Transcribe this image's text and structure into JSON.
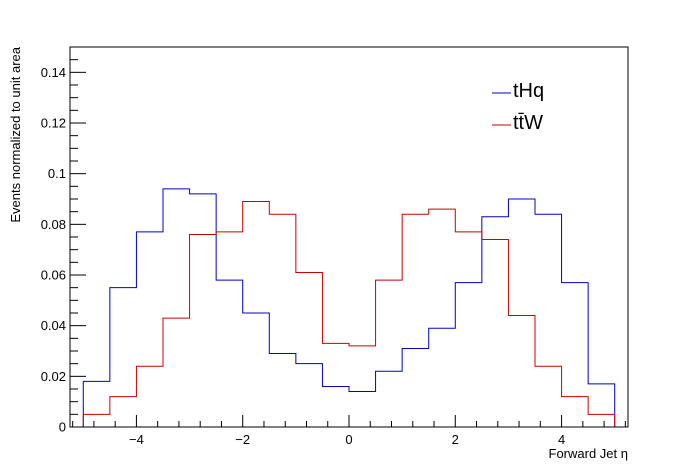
{
  "chart_data": {
    "type": "histogram",
    "xlabel": "Forward Jet η",
    "ylabel": "Events normalized to unit area",
    "xlim": [
      -5.25,
      5.25
    ],
    "ylim": [
      0,
      0.15
    ],
    "x_ticks": [
      -4,
      -2,
      0,
      2,
      4
    ],
    "y_ticks": [
      0,
      0.02,
      0.04,
      0.06,
      0.08,
      0.1,
      0.12,
      0.14
    ],
    "x_tick_labels": [
      "−4",
      "−2",
      "0",
      "2",
      "4"
    ],
    "y_tick_labels": [
      "0",
      "0.02",
      "0.04",
      "0.06",
      "0.08",
      "0.1",
      "0.12",
      "0.14"
    ],
    "bin_edges": [
      -5.0,
      -4.5,
      -4.0,
      -3.5,
      -3.0,
      -2.5,
      -2.0,
      -1.5,
      -1.0,
      -0.5,
      0.0,
      0.5,
      1.0,
      1.5,
      2.0,
      2.5,
      3.0,
      3.5,
      4.0,
      4.5,
      5.0
    ],
    "series": [
      {
        "name": "tHq",
        "color": "#0000cc",
        "values": [
          0.018,
          0.055,
          0.077,
          0.094,
          0.092,
          0.058,
          0.045,
          0.029,
          0.025,
          0.016,
          0.014,
          0.022,
          0.031,
          0.039,
          0.057,
          0.083,
          0.09,
          0.084,
          0.057,
          0.017
        ]
      },
      {
        "name": "tt̄W",
        "color": "#cc0000",
        "values": [
          0.005,
          0.012,
          0.024,
          0.043,
          0.076,
          0.077,
          0.089,
          0.084,
          0.061,
          0.033,
          0.032,
          0.058,
          0.084,
          0.086,
          0.077,
          0.074,
          0.044,
          0.024,
          0.012,
          0.005
        ]
      }
    ],
    "legend": {
      "position": "top-right",
      "entries": [
        "tHq",
        "tt̄W"
      ]
    }
  }
}
